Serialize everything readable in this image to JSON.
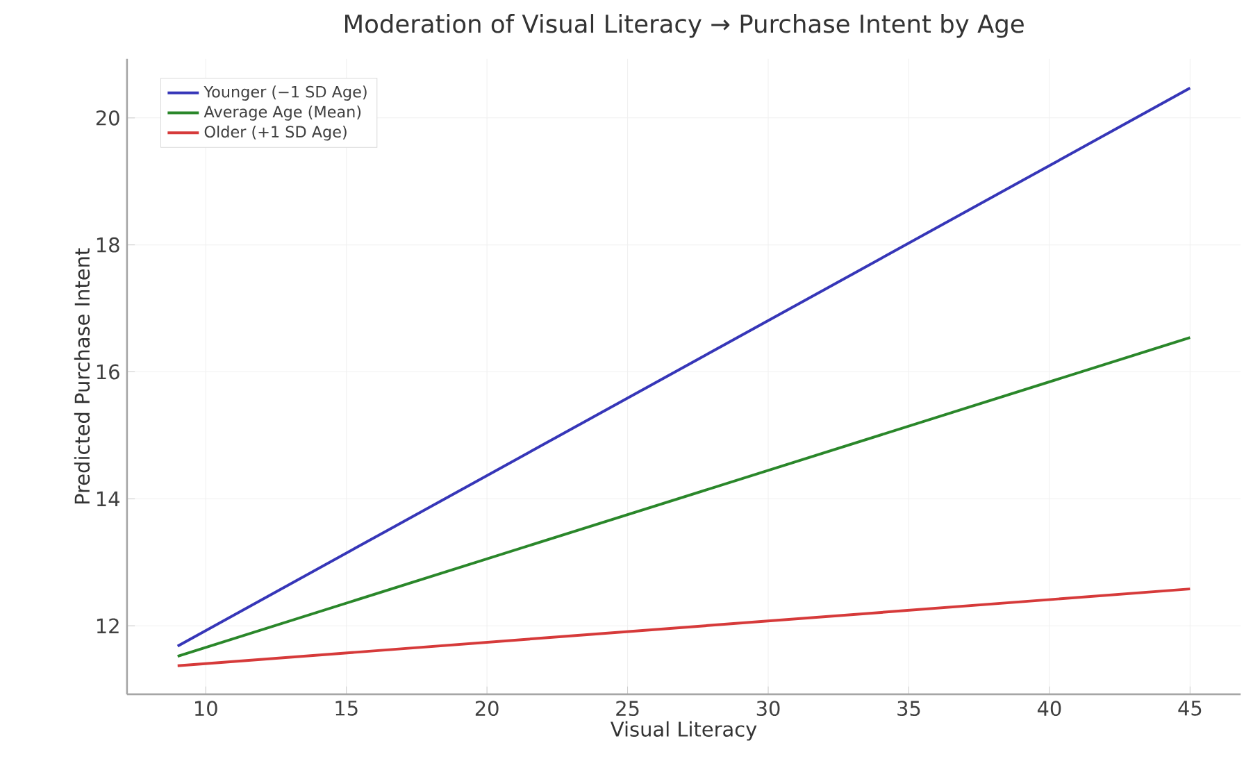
{
  "chart_data": {
    "type": "line",
    "title": "Moderation of Visual Literacy → Purchase Intent by Age",
    "xlabel": "Visual Literacy",
    "ylabel": "Predicted Purchase Intent",
    "x": [
      9,
      45
    ],
    "series": [
      {
        "name": "Younger (−1 SD Age)",
        "color": "#3636b8",
        "values": [
          11.68,
          20.47
        ]
      },
      {
        "name": "Average Age (Mean)",
        "color": "#2a872a",
        "values": [
          11.52,
          16.54
        ]
      },
      {
        "name": "Older (+1 SD Age)",
        "color": "#d63a3a",
        "values": [
          11.37,
          12.58
        ]
      }
    ],
    "xlim": [
      7.2,
      46.8
    ],
    "ylim": [
      10.92,
      20.93
    ],
    "xticks": [
      10,
      15,
      20,
      25,
      30,
      35,
      40,
      45
    ],
    "yticks": [
      12,
      14,
      16,
      18,
      20
    ],
    "grid": true,
    "legend": "top left"
  }
}
